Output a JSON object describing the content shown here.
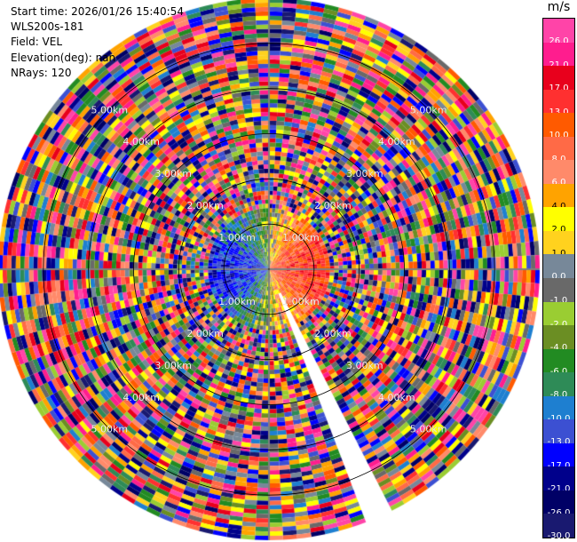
{
  "info": {
    "start_time": "Start time: 2026/01/26 15:40:54",
    "instrument": "WLS200s-181",
    "field": "Field: VEL",
    "elevation": "Elevation(deg): nan",
    "nrays": "NRays: 120"
  },
  "colorbar": {
    "unit": "m/s",
    "levels": [
      {
        "label": "26.0",
        "color": "#ff44a8"
      },
      {
        "label": "21.0",
        "color": "#ff1d8e"
      },
      {
        "label": "17.0",
        "color": "#e8001c"
      },
      {
        "label": "13.0",
        "color": "#ff3030"
      },
      {
        "label": "10.0",
        "color": "#ff5a00"
      },
      {
        "label": "8.0",
        "color": "#ff6a46"
      },
      {
        "label": "6.0",
        "color": "#ff8a6a"
      },
      {
        "label": "4.0",
        "color": "#ffa300"
      },
      {
        "label": "2.0",
        "color": "#ffff00"
      },
      {
        "label": "1.0",
        "color": "#ffd21e"
      },
      {
        "label": "0.0",
        "color": "#778899"
      },
      {
        "label": "-1.0",
        "color": "#696969"
      },
      {
        "label": "-2.0",
        "color": "#9acd32"
      },
      {
        "label": "-4.0",
        "color": "#6b8e23"
      },
      {
        "label": "-6.0",
        "color": "#228b22"
      },
      {
        "label": "-8.0",
        "color": "#2e8b57"
      },
      {
        "label": "-10.0",
        "color": "#1e7fd0"
      },
      {
        "label": "-13.0",
        "color": "#3c50d2"
      },
      {
        "label": "-17.0",
        "color": "#0000ff"
      },
      {
        "label": "-21.0",
        "color": "#00008b"
      },
      {
        "label": "-26.0",
        "color": "#000066"
      },
      {
        "label": "-30.0",
        "color": "#191970"
      }
    ]
  },
  "chart_data": {
    "type": "heatmap",
    "field": "VEL",
    "units": "m/s",
    "nrays": 120,
    "max_range_km": 6.0,
    "range_ring_labels": [
      {
        "ring": "1.00km",
        "range_km": 1.0
      },
      {
        "ring": "2.00km",
        "range_km": 2.0
      },
      {
        "ring": "3.00km",
        "range_km": 3.0
      },
      {
        "ring": "4.00km",
        "range_km": 4.0
      },
      {
        "ring": "5.00km",
        "range_km": 5.0
      }
    ],
    "blocked_sector_deg": [
      152,
      159
    ],
    "color_levels": [
      -30,
      -26,
      -21,
      -17,
      -13,
      -10,
      -8,
      -6,
      -4,
      -2,
      -1,
      0,
      1,
      2,
      4,
      6,
      8,
      10,
      13,
      17,
      21,
      26
    ]
  }
}
